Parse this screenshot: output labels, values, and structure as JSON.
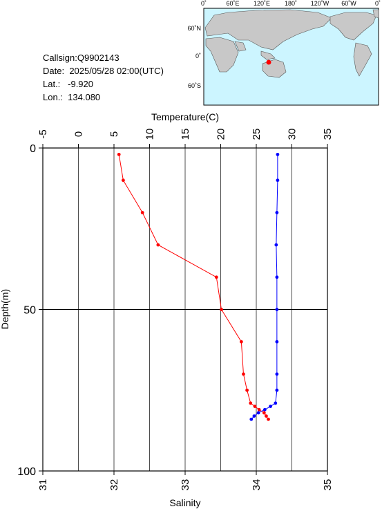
{
  "station": {
    "callsign_label": "Callsign:",
    "callsign": "Q9902143",
    "date_label": "Date:",
    "date": "2025/05/28 02:00(UTC)",
    "lat_label": "Lat.:",
    "lat": "-9.920",
    "lon_label": "Lon.:",
    "lon": "134.080"
  },
  "map": {
    "lon_labels": [
      "0˚",
      "60˚E",
      "120˚E",
      "180˚",
      "120˚W",
      "60˚W",
      "0˚"
    ],
    "lat_labels": [
      "60˚N",
      "0˚",
      "60˚S"
    ],
    "colors": {
      "ocean": "#ccf5ff",
      "land": "#c8c8c8",
      "marker": "#ff0000"
    }
  },
  "chart_data": {
    "type": "line",
    "xlabel_top": "Temperature(C)",
    "xlabel_bottom": "Salinity",
    "ylabel": "Depth(m)",
    "temperature_axis": {
      "range": [
        -5,
        35
      ],
      "ticks": [
        -5,
        0,
        5,
        10,
        15,
        20,
        25,
        30,
        35
      ]
    },
    "salinity_axis": {
      "range": [
        31,
        35
      ],
      "ticks": [
        31,
        32,
        33,
        34,
        35
      ]
    },
    "depth_axis": {
      "range": [
        0,
        100
      ],
      "ticks": [
        0,
        50,
        100
      ],
      "inverted": true
    },
    "grid": true,
    "series": [
      {
        "name": "Temperature",
        "axis": "temperature",
        "color": "#ff0000",
        "points": [
          [
            5.7,
            2
          ],
          [
            6.3,
            10
          ],
          [
            9.0,
            20
          ],
          [
            11.2,
            30
          ],
          [
            19.4,
            40
          ],
          [
            20.1,
            50
          ],
          [
            22.9,
            60
          ],
          [
            23.2,
            70
          ],
          [
            23.7,
            75
          ],
          [
            24.2,
            79
          ],
          [
            24.8,
            80
          ],
          [
            25.4,
            81
          ],
          [
            26.1,
            82
          ],
          [
            26.4,
            83
          ],
          [
            26.7,
            84
          ]
        ]
      },
      {
        "name": "Salinity",
        "axis": "salinity",
        "color": "#0000ff",
        "points": [
          [
            34.3,
            2
          ],
          [
            34.3,
            10
          ],
          [
            34.29,
            20
          ],
          [
            34.28,
            30
          ],
          [
            34.29,
            40
          ],
          [
            34.29,
            50
          ],
          [
            34.29,
            60
          ],
          [
            34.29,
            70
          ],
          [
            34.29,
            75
          ],
          [
            34.27,
            79
          ],
          [
            34.2,
            80
          ],
          [
            34.12,
            81
          ],
          [
            34.03,
            82
          ],
          [
            33.97,
            83
          ],
          [
            33.93,
            84
          ]
        ]
      }
    ]
  }
}
